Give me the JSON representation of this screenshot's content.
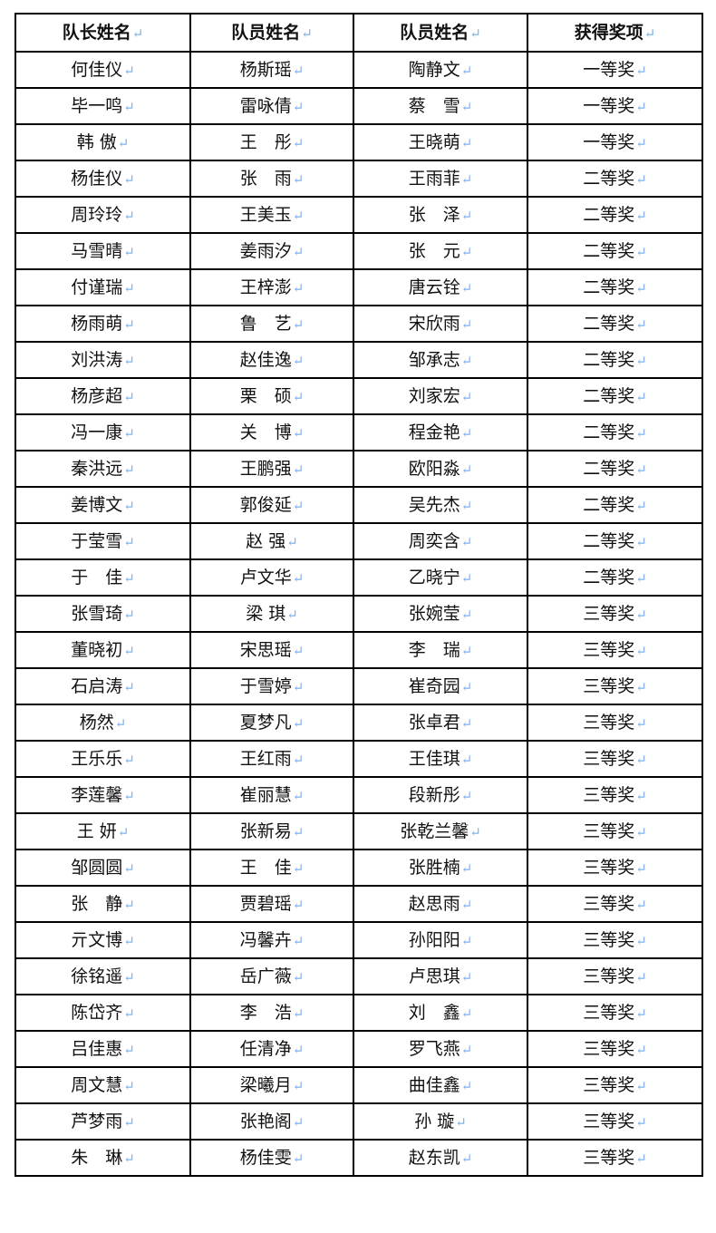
{
  "headers": [
    "队长姓名",
    "队员姓名",
    "队员姓名",
    "获得奖项"
  ],
  "rows": [
    [
      "何佳仪",
      "杨斯瑶",
      "陶静文",
      "一等奖"
    ],
    [
      "毕一鸣",
      "雷咏倩",
      "蔡　雪",
      "一等奖"
    ],
    [
      "韩 傲",
      "王　彤",
      "王晓萌",
      "一等奖"
    ],
    [
      "杨佳仪",
      "张　雨",
      "王雨菲",
      "二等奖"
    ],
    [
      "周玲玲",
      "王美玉",
      "张　泽",
      "二等奖"
    ],
    [
      "马雪晴",
      "姜雨汐",
      "张　元",
      "二等奖"
    ],
    [
      "付谨瑞",
      "王梓澎",
      "唐云铨",
      "二等奖"
    ],
    [
      "杨雨萌",
      "鲁　艺",
      "宋欣雨",
      "二等奖"
    ],
    [
      "刘洪涛",
      "赵佳逸",
      "邹承志",
      "二等奖"
    ],
    [
      "杨彦超",
      "栗　硕",
      "刘家宏",
      "二等奖"
    ],
    [
      "冯一康",
      "关　博",
      "程金艳",
      "二等奖"
    ],
    [
      "秦洪远",
      "王鹏强",
      "欧阳淼",
      "二等奖"
    ],
    [
      "姜博文",
      "郭俊延",
      "吴先杰",
      "二等奖"
    ],
    [
      "于莹雪",
      "赵 强",
      "周奕含",
      "二等奖"
    ],
    [
      "于　佳",
      "卢文华",
      "乙晓宁",
      "二等奖"
    ],
    [
      "张雪琦",
      "梁 琪",
      "张婉莹",
      "三等奖"
    ],
    [
      "董晓初",
      "宋思瑶",
      "李　瑞",
      "三等奖"
    ],
    [
      "石启涛",
      "于雪婷",
      "崔奇园",
      "三等奖"
    ],
    [
      "杨然",
      "夏梦凡",
      "张卓君",
      "三等奖"
    ],
    [
      "王乐乐",
      "王红雨",
      "王佳琪",
      "三等奖"
    ],
    [
      "李莲馨",
      "崔丽慧",
      "段新彤",
      "三等奖"
    ],
    [
      "王 妍",
      "张新易",
      "张乾兰馨",
      "三等奖"
    ],
    [
      "邹圆圆",
      "王　佳",
      "张胜楠",
      "三等奖"
    ],
    [
      "张　静",
      "贾碧瑶",
      "赵思雨",
      "三等奖"
    ],
    [
      "亓文博",
      "冯馨卉",
      "孙阳阳",
      "三等奖"
    ],
    [
      "徐铭遥",
      "岳广薇",
      "卢思琪",
      "三等奖"
    ],
    [
      "陈岱齐",
      "李　浩",
      "刘　鑫",
      "三等奖"
    ],
    [
      "吕佳惠",
      "任清净",
      "罗飞燕",
      "三等奖"
    ],
    [
      "周文慧",
      "梁曦月",
      "曲佳鑫",
      "三等奖"
    ],
    [
      "芦梦雨",
      "张艳阁",
      "孙 璇",
      "三等奖"
    ],
    [
      "朱　琳",
      "杨佳雯",
      "赵东凯",
      "三等奖"
    ]
  ]
}
